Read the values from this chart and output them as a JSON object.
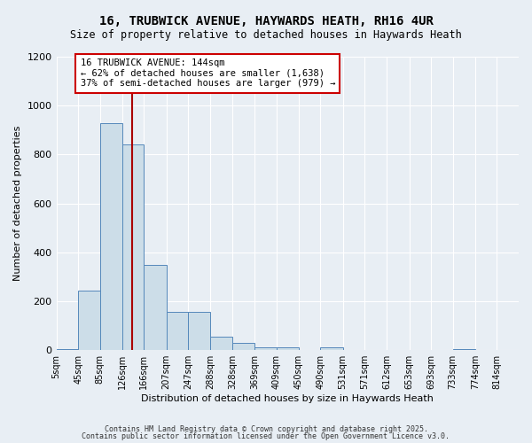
{
  "title1": "16, TRUBWICK AVENUE, HAYWARDS HEATH, RH16 4UR",
  "title2": "Size of property relative to detached houses in Haywards Heath",
  "xlabel": "Distribution of detached houses by size in Haywards Heath",
  "ylabel": "Number of detached properties",
  "bin_edges": [
    5,
    45,
    85,
    126,
    166,
    207,
    247,
    288,
    328,
    369,
    409,
    450,
    490,
    531,
    571,
    612,
    653,
    693,
    733,
    774,
    814
  ],
  "bin_labels": [
    "5sqm",
    "45sqm",
    "85sqm",
    "126sqm",
    "166sqm",
    "207sqm",
    "247sqm",
    "288sqm",
    "328sqm",
    "369sqm",
    "409sqm",
    "450sqm",
    "490sqm",
    "531sqm",
    "571sqm",
    "612sqm",
    "653sqm",
    "693sqm",
    "733sqm",
    "774sqm",
    "814sqm"
  ],
  "bar_heights": [
    5,
    245,
    930,
    840,
    350,
    155,
    155,
    55,
    30,
    10,
    10,
    0,
    10,
    0,
    0,
    0,
    0,
    0,
    5,
    0,
    0
  ],
  "bar_color": "#ccdde8",
  "bar_edge_color": "#5588bb",
  "vline_x": 144,
  "vline_color": "#aa0000",
  "annotation_text": "16 TRUBWICK AVENUE: 144sqm\n← 62% of detached houses are smaller (1,638)\n37% of semi-detached houses are larger (979) →",
  "annotation_box_color": "#ffffff",
  "annotation_border_color": "#cc0000",
  "ylim": [
    0,
    1200
  ],
  "yticks": [
    0,
    200,
    400,
    600,
    800,
    1000,
    1200
  ],
  "bg_color": "#e8eef4",
  "grid_color": "#ffffff",
  "footer1": "Contains HM Land Registry data © Crown copyright and database right 2025.",
  "footer2": "Contains public sector information licensed under the Open Government Licence v3.0."
}
